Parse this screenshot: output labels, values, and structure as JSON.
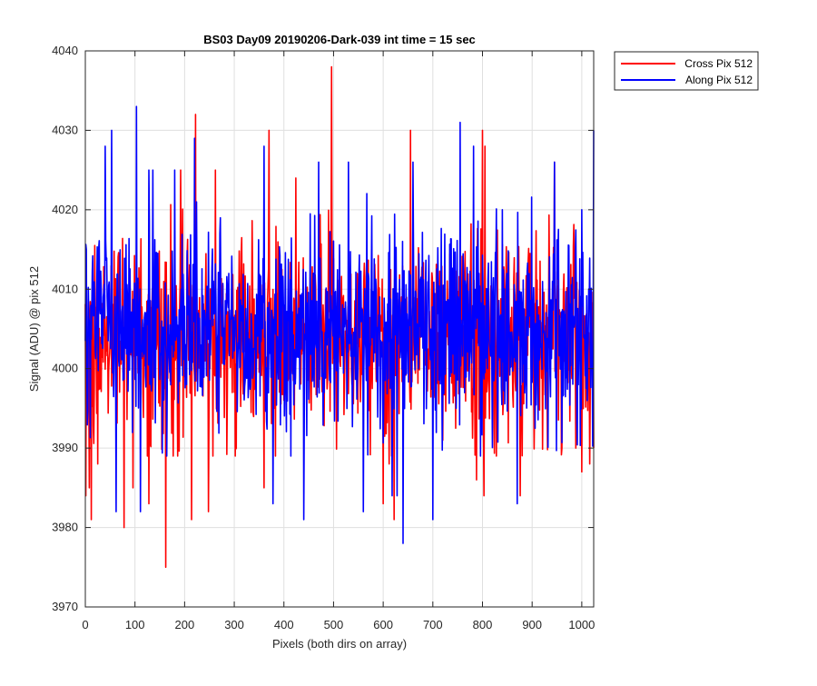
{
  "chart_data": {
    "type": "line",
    "title": "BS03 Day09 20190206-Dark-039 int time = 15 sec",
    "xlabel": "Pixels (both dirs on array)",
    "ylabel": "Signal (ADU) @ pix 512",
    "xlim": [
      0,
      1024
    ],
    "ylim": [
      3970,
      4040
    ],
    "xticks": [
      0,
      100,
      200,
      300,
      400,
      500,
      600,
      700,
      800,
      900,
      1000
    ],
    "yticks": [
      3970,
      3980,
      3990,
      4000,
      4010,
      4020,
      4030,
      4040
    ],
    "grid": true,
    "legend_position": "outside-top-right",
    "series": [
      {
        "name": "Cross Pix 512",
        "color": "#ff0000",
        "noise_mean": 4004,
        "noise_std": 6,
        "x": [
          1,
          8,
          12,
          25,
          78,
          96,
          128,
          162,
          192,
          214,
          222,
          248,
          262,
          360,
          370,
          424,
          496,
          600,
          612,
          622,
          655,
          720,
          788,
          800,
          803,
          805,
          876,
          945,
          960,
          988,
          1000,
          1016,
          1024
        ],
        "y": [
          3984,
          3985,
          3981,
          3988,
          3980,
          3985,
          3983,
          3975,
          4025,
          3981,
          4032,
          3982,
          4025,
          3985,
          4030,
          4024,
          4038,
          3983,
          3988,
          3981,
          4030,
          3991,
          3986,
          4030,
          3984,
          4028,
          3984,
          4026,
          3990,
          3990,
          3987,
          3988,
          3990
        ]
      },
      {
        "name": "Along Pix 512",
        "color": "#0000ff",
        "noise_mean": 4005,
        "noise_std": 6,
        "x": [
          2,
          40,
          53,
          62,
          103,
          111,
          128,
          136,
          180,
          220,
          360,
          378,
          440,
          470,
          530,
          560,
          618,
          628,
          640,
          660,
          700,
          755,
          782,
          840,
          870,
          945,
          1000,
          1024
        ],
        "y": [
          4015,
          4028,
          4030,
          3982,
          4033,
          3982,
          4025,
          4025,
          4025,
          4029,
          4028,
          3983,
          3981,
          4026,
          4026,
          3982,
          3984,
          3984,
          3978,
          4026,
          3981,
          4031,
          4028,
          4020,
          3983,
          4026,
          4020,
          4030
        ]
      }
    ]
  }
}
